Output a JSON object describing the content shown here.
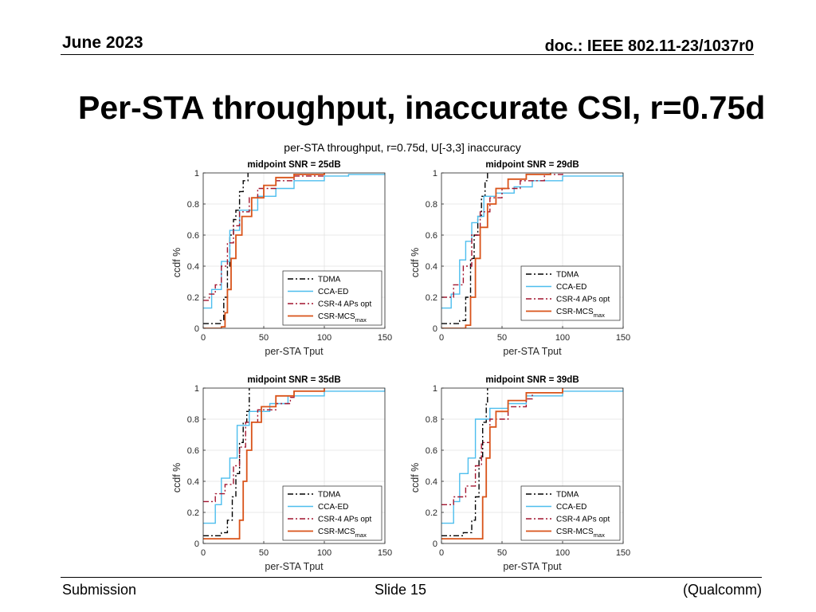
{
  "header": {
    "date": "June 2023",
    "doc_id": "doc.: IEEE 802.11-23/1037r0"
  },
  "slide_title": "Per-STA throughput, inaccurate CSI, r=0.75d",
  "footer": {
    "left": "Submission",
    "center": "Slide 15",
    "right": "(Qualcomm)"
  },
  "colors": {
    "TDMA": "#000000",
    "CCA-ED": "#4DBEEE",
    "CSR-4 APs opt": "#A2142F",
    "CSR-MCS": "#D95319"
  },
  "chart_data": {
    "type": "line",
    "subtype": "empirical ccdf (step)",
    "title": "per-STA throughput, r=0.75d, U[-3,3] inaccuracy",
    "legend_items": [
      {
        "label": "TDMA",
        "style": "dash-dot",
        "color": "#000000"
      },
      {
        "label": "CCA-ED",
        "style": "solid",
        "color": "#4DBEEE"
      },
      {
        "label": "CSR-4 APs opt",
        "style": "dash-dot",
        "color": "#A2142F"
      },
      {
        "label": "CSR-MCS",
        "subscript": "max",
        "style": "solid",
        "color": "#D95319"
      }
    ],
    "panels": [
      {
        "title": "midpoint SNR = 25dB",
        "xlabel": "per-STA Tput",
        "ylabel": "ccdf %",
        "xlim": [
          0,
          150
        ],
        "ylim": [
          0,
          1
        ],
        "xticks": [
          "0",
          "50",
          "100",
          "150"
        ],
        "yticks": [
          "0",
          "0.2",
          "0.4",
          "0.6",
          "0.8",
          "1"
        ],
        "grid": true,
        "legend_position": "bottom-right",
        "series": [
          {
            "name": "TDMA",
            "points": [
              [
                0,
                0.03
              ],
              [
                10,
                0.03
              ],
              [
                14,
                0.05
              ],
              [
                17,
                0.2
              ],
              [
                20,
                0.4
              ],
              [
                22,
                0.6
              ],
              [
                25,
                0.7
              ],
              [
                27,
                0.76
              ],
              [
                30,
                0.88
              ],
              [
                33,
                0.95
              ],
              [
                37,
                1.0
              ]
            ]
          },
          {
            "name": "CCA-ED",
            "points": [
              [
                0,
                0.13
              ],
              [
                7,
                0.25
              ],
              [
                15,
                0.43
              ],
              [
                22,
                0.63
              ],
              [
                30,
                0.76
              ],
              [
                45,
                0.85
              ],
              [
                60,
                0.9
              ],
              [
                75,
                0.95
              ],
              [
                100,
                0.98
              ],
              [
                120,
                0.99
              ],
              [
                150,
                1.0
              ]
            ]
          },
          {
            "name": "CSR-4 APs opt",
            "points": [
              [
                0,
                0.18
              ],
              [
                5,
                0.22
              ],
              [
                10,
                0.28
              ],
              [
                15,
                0.4
              ],
              [
                20,
                0.55
              ],
              [
                25,
                0.66
              ],
              [
                30,
                0.75
              ],
              [
                38,
                0.84
              ],
              [
                45,
                0.9
              ],
              [
                60,
                0.95
              ],
              [
                75,
                0.98
              ],
              [
                100,
                1.0
              ]
            ]
          },
          {
            "name": "CSR-MCS",
            "points": [
              [
                0,
                0.0
              ],
              [
                15,
                0.01
              ],
              [
                18,
                0.1
              ],
              [
                20,
                0.25
              ],
              [
                23,
                0.45
              ],
              [
                27,
                0.6
              ],
              [
                32,
                0.72
              ],
              [
                40,
                0.84
              ],
              [
                50,
                0.92
              ],
              [
                60,
                0.97
              ],
              [
                75,
                0.99
              ],
              [
                100,
                1.0
              ]
            ]
          }
        ]
      },
      {
        "title": "midpoint SNR = 29dB",
        "xlabel": "per-STA Tput",
        "ylabel": "ccdf %",
        "xlim": [
          0,
          150
        ],
        "ylim": [
          0,
          1
        ],
        "xticks": [
          "0",
          "50",
          "100",
          "150"
        ],
        "yticks": [
          "0",
          "0.2",
          "0.4",
          "0.6",
          "0.8",
          "1"
        ],
        "grid": true,
        "legend_position": "bottom-right",
        "series": [
          {
            "name": "TDMA",
            "points": [
              [
                0,
                0.03
              ],
              [
                15,
                0.05
              ],
              [
                20,
                0.2
              ],
              [
                24,
                0.45
              ],
              [
                27,
                0.6
              ],
              [
                30,
                0.72
              ],
              [
                33,
                0.85
              ],
              [
                36,
                0.95
              ],
              [
                38,
                1.0
              ]
            ]
          },
          {
            "name": "CCA-ED",
            "points": [
              [
                0,
                0.13
              ],
              [
                8,
                0.22
              ],
              [
                15,
                0.44
              ],
              [
                20,
                0.56
              ],
              [
                25,
                0.68
              ],
              [
                30,
                0.72
              ],
              [
                35,
                0.85
              ],
              [
                45,
                0.87
              ],
              [
                60,
                0.91
              ],
              [
                75,
                0.95
              ],
              [
                100,
                0.98
              ],
              [
                150,
                1.0
              ]
            ]
          },
          {
            "name": "CSR-4 APs opt",
            "points": [
              [
                0,
                0.2
              ],
              [
                10,
                0.28
              ],
              [
                18,
                0.4
              ],
              [
                25,
                0.6
              ],
              [
                32,
                0.75
              ],
              [
                40,
                0.84
              ],
              [
                50,
                0.9
              ],
              [
                65,
                0.95
              ],
              [
                85,
                0.99
              ],
              [
                100,
                1.0
              ]
            ]
          },
          {
            "name": "CSR-MCS",
            "points": [
              [
                0,
                0.0
              ],
              [
                20,
                0.02
              ],
              [
                24,
                0.2
              ],
              [
                28,
                0.45
              ],
              [
                32,
                0.65
              ],
              [
                38,
                0.8
              ],
              [
                45,
                0.9
              ],
              [
                55,
                0.96
              ],
              [
                70,
                0.99
              ],
              [
                90,
                1.0
              ]
            ]
          }
        ]
      },
      {
        "title": "midpoint SNR = 35dB",
        "xlabel": "per-STA Tput",
        "ylabel": "ccdf %",
        "xlim": [
          0,
          150
        ],
        "ylim": [
          0,
          1
        ],
        "xticks": [
          "0",
          "50",
          "100",
          "150"
        ],
        "yticks": [
          "0",
          "0.2",
          "0.4",
          "0.6",
          "0.8",
          "1"
        ],
        "grid": true,
        "legend_position": "bottom-right",
        "series": [
          {
            "name": "TDMA",
            "points": [
              [
                0,
                0.05
              ],
              [
                15,
                0.07
              ],
              [
                20,
                0.15
              ],
              [
                24,
                0.3
              ],
              [
                27,
                0.45
              ],
              [
                30,
                0.65
              ],
              [
                33,
                0.78
              ],
              [
                36,
                0.85
              ],
              [
                38,
                1.0
              ]
            ]
          },
          {
            "name": "CCA-ED",
            "points": [
              [
                0,
                0.13
              ],
              [
                10,
                0.25
              ],
              [
                15,
                0.42
              ],
              [
                22,
                0.55
              ],
              [
                28,
                0.76
              ],
              [
                38,
                0.85
              ],
              [
                55,
                0.9
              ],
              [
                70,
                0.95
              ],
              [
                100,
                0.98
              ],
              [
                150,
                1.0
              ]
            ]
          },
          {
            "name": "CSR-4 APs opt",
            "points": [
              [
                0,
                0.27
              ],
              [
                10,
                0.32
              ],
              [
                18,
                0.38
              ],
              [
                25,
                0.5
              ],
              [
                30,
                0.62
              ],
              [
                35,
                0.78
              ],
              [
                45,
                0.86
              ],
              [
                60,
                0.9
              ],
              [
                72,
                0.94
              ],
              [
                75,
                0.98
              ]
            ]
          },
          {
            "name": "CSR-MCS",
            "points": [
              [
                0,
                0.03
              ],
              [
                25,
                0.03
              ],
              [
                30,
                0.15
              ],
              [
                33,
                0.4
              ],
              [
                36,
                0.6
              ],
              [
                40,
                0.78
              ],
              [
                48,
                0.88
              ],
              [
                60,
                0.95
              ],
              [
                75,
                0.98
              ],
              [
                100,
                1.0
              ]
            ]
          }
        ]
      },
      {
        "title": "midpoint SNR = 39dB",
        "xlabel": "per-STA Tput",
        "ylabel": "ccdf %",
        "xlim": [
          0,
          150
        ],
        "ylim": [
          0,
          1
        ],
        "xticks": [
          "0",
          "50",
          "100",
          "150"
        ],
        "yticks": [
          "0",
          "0.2",
          "0.4",
          "0.6",
          "0.8",
          "1"
        ],
        "grid": true,
        "legend_position": "bottom-right",
        "series": [
          {
            "name": "TDMA",
            "points": [
              [
                0,
                0.05
              ],
              [
                18,
                0.07
              ],
              [
                25,
                0.15
              ],
              [
                28,
                0.3
              ],
              [
                31,
                0.55
              ],
              [
                34,
                0.78
              ],
              [
                37,
                0.9
              ],
              [
                38,
                1.0
              ]
            ]
          },
          {
            "name": "CCA-ED",
            "points": [
              [
                0,
                0.13
              ],
              [
                10,
                0.27
              ],
              [
                15,
                0.45
              ],
              [
                22,
                0.55
              ],
              [
                28,
                0.8
              ],
              [
                40,
                0.87
              ],
              [
                55,
                0.9
              ],
              [
                70,
                0.95
              ],
              [
                100,
                0.98
              ],
              [
                150,
                1.0
              ]
            ]
          },
          {
            "name": "CSR-4 APs opt",
            "points": [
              [
                0,
                0.25
              ],
              [
                10,
                0.3
              ],
              [
                20,
                0.37
              ],
              [
                28,
                0.5
              ],
              [
                33,
                0.65
              ],
              [
                40,
                0.8
              ],
              [
                55,
                0.88
              ],
              [
                70,
                0.93
              ],
              [
                75,
                0.97
              ]
            ]
          },
          {
            "name": "CSR-MCS",
            "points": [
              [
                0,
                0.03
              ],
              [
                30,
                0.03
              ],
              [
                34,
                0.3
              ],
              [
                37,
                0.55
              ],
              [
                40,
                0.75
              ],
              [
                45,
                0.85
              ],
              [
                55,
                0.92
              ],
              [
                70,
                0.97
              ],
              [
                100,
                1.0
              ]
            ]
          }
        ]
      }
    ]
  }
}
